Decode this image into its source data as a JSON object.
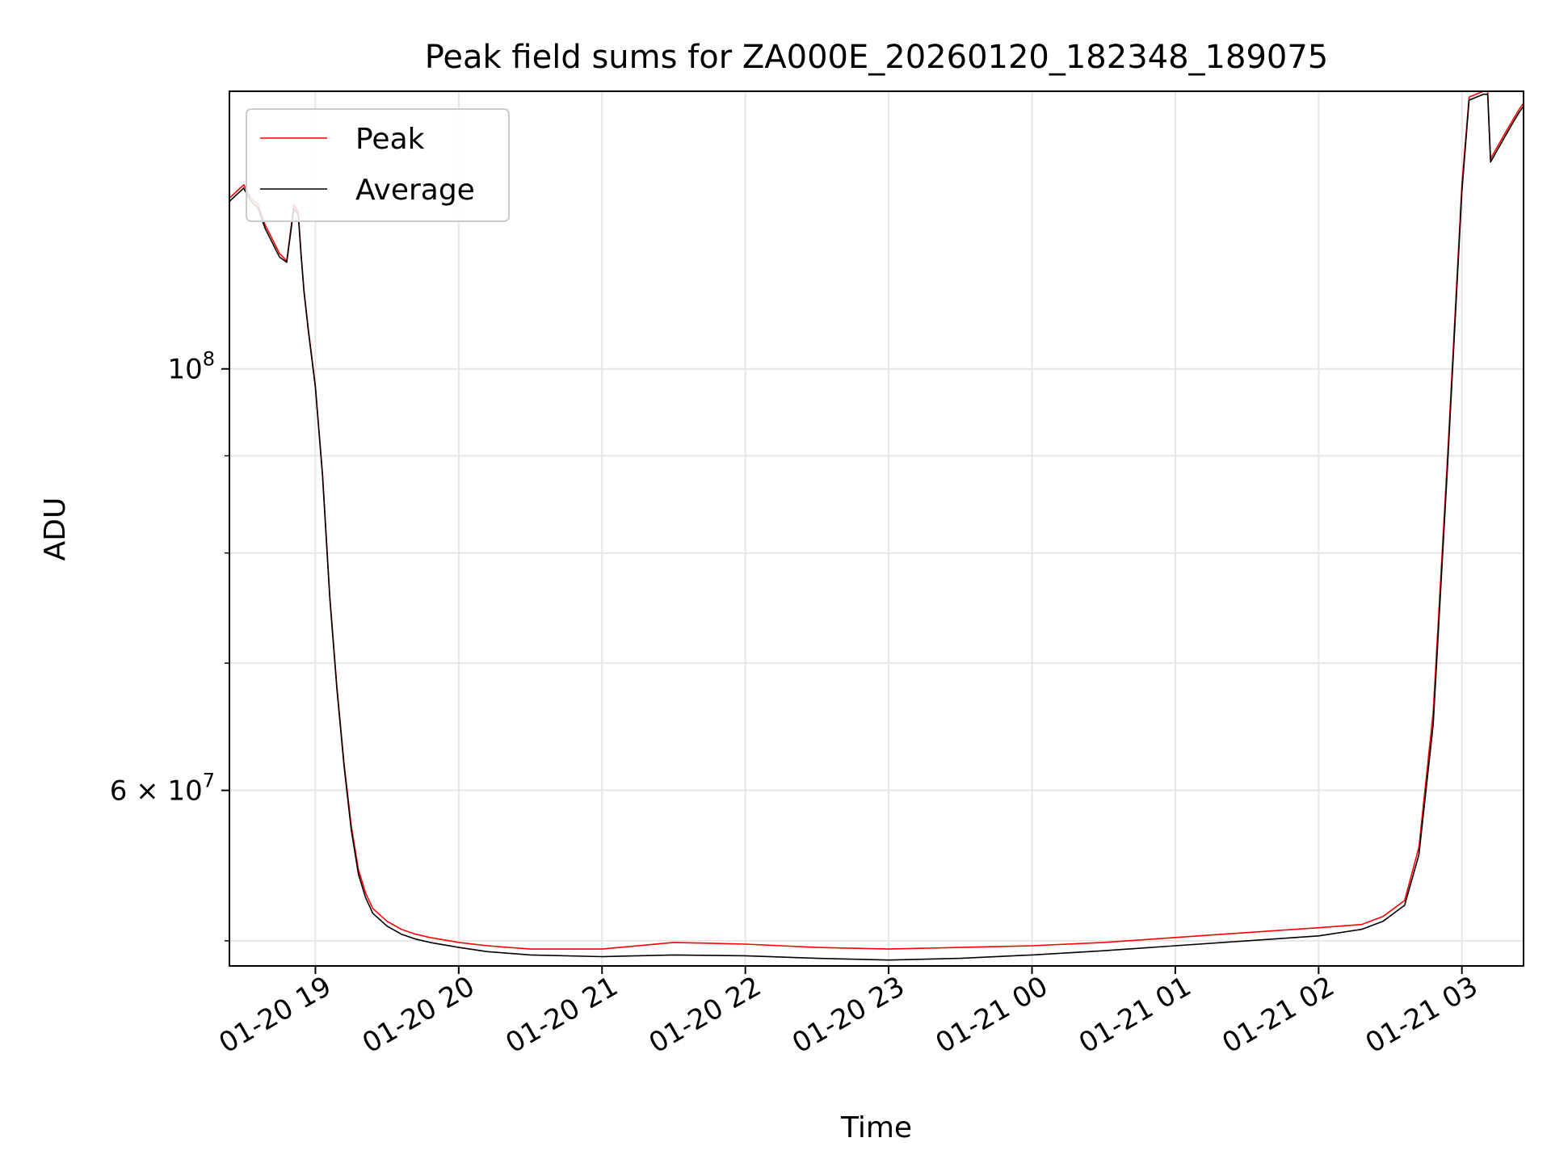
{
  "chart_data": {
    "type": "line",
    "title": "Peak field sums for ZA000E_20260120_182348_189075",
    "xlabel": "Time",
    "ylabel": "ADU",
    "yscale": "log",
    "xlim": [
      -0.6,
      8.43
    ],
    "ylim": [
      48500000,
      140000000
    ],
    "grid": true,
    "legend_position": "top-left",
    "x_ticks": [
      {
        "value": 0,
        "label": "01-20 19"
      },
      {
        "value": 1,
        "label": "01-20 20"
      },
      {
        "value": 2,
        "label": "01-20 21"
      },
      {
        "value": 3,
        "label": "01-20 22"
      },
      {
        "value": 4,
        "label": "01-20 23"
      },
      {
        "value": 5,
        "label": "01-21 00"
      },
      {
        "value": 6,
        "label": "01-21 01"
      },
      {
        "value": 7,
        "label": "01-21 02"
      },
      {
        "value": 8,
        "label": "01-21 03"
      }
    ],
    "y_major_ticks": [
      {
        "value": 100000000,
        "mant": "10",
        "exp": "8"
      },
      {
        "value": 60000000,
        "mant": "6 × 10",
        "exp": "7"
      }
    ],
    "y_minor_ticks": [
      50000000,
      70000000,
      80000000,
      90000000
    ],
    "series": [
      {
        "name": "Peak",
        "color": "#ff0000",
        "x": [
          -0.6,
          -0.55,
          -0.5,
          -0.45,
          -0.4,
          -0.35,
          -0.3,
          -0.25,
          -0.2,
          -0.15,
          -0.12,
          -0.1,
          -0.08,
          -0.05,
          0,
          0.05,
          0.1,
          0.15,
          0.2,
          0.25,
          0.3,
          0.35,
          0.4,
          0.5,
          0.6,
          0.7,
          0.8,
          1.0,
          1.2,
          1.5,
          2.0,
          2.5,
          3.0,
          3.5,
          4.0,
          4.5,
          5.0,
          5.5,
          6.0,
          6.5,
          7.0,
          7.3,
          7.45,
          7.6,
          7.7,
          7.8,
          7.9,
          8.0,
          8.05,
          8.15,
          8.18,
          8.2,
          8.25,
          8.3,
          8.35,
          8.4,
          8.43
        ],
        "values": [
          123000000,
          124000000,
          125000000,
          123000000,
          122000000,
          119000000,
          117000000,
          115000000,
          114000000,
          122000000,
          121000000,
          115000000,
          110000000,
          105000000,
          98000000,
          88000000,
          76000000,
          68000000,
          62000000,
          57500000,
          54500000,
          53000000,
          52000000,
          51200000,
          50700000,
          50400000,
          50200000,
          49900000,
          49700000,
          49500000,
          49500000,
          49900000,
          49800000,
          49600000,
          49500000,
          49600000,
          49700000,
          49900000,
          50200000,
          50500000,
          50800000,
          51000000,
          51500000,
          52500000,
          56000000,
          66000000,
          90000000,
          125000000,
          139000000,
          140000000,
          140000000,
          129000000,
          131000000,
          133000000,
          135000000,
          137000000,
          138000000
        ]
      },
      {
        "name": "Average",
        "color": "#000000",
        "x": [
          -0.6,
          -0.55,
          -0.5,
          -0.45,
          -0.4,
          -0.35,
          -0.3,
          -0.25,
          -0.2,
          -0.15,
          -0.12,
          -0.1,
          -0.08,
          -0.05,
          0,
          0.05,
          0.1,
          0.15,
          0.2,
          0.25,
          0.3,
          0.35,
          0.4,
          0.5,
          0.6,
          0.7,
          0.8,
          1.0,
          1.2,
          1.5,
          2.0,
          2.5,
          3.0,
          3.5,
          4.0,
          4.5,
          5.0,
          5.5,
          6.0,
          6.5,
          7.0,
          7.3,
          7.45,
          7.6,
          7.7,
          7.8,
          7.9,
          8.0,
          8.05,
          8.15,
          8.18,
          8.2,
          8.25,
          8.3,
          8.35,
          8.4,
          8.43
        ],
        "values": [
          122500000,
          123500000,
          124500000,
          122500000,
          121500000,
          118500000,
          116500000,
          114500000,
          113800000,
          121500000,
          120500000,
          114800000,
          109800000,
          104800000,
          97800000,
          87800000,
          75800000,
          67800000,
          61800000,
          57200000,
          54200000,
          52700000,
          51700000,
          50900000,
          50400000,
          50100000,
          49900000,
          49600000,
          49350000,
          49150000,
          49050000,
          49150000,
          49100000,
          48950000,
          48850000,
          48950000,
          49150000,
          49400000,
          49700000,
          50000000,
          50300000,
          50700000,
          51200000,
          52200000,
          55500000,
          65000000,
          89000000,
          124000000,
          138500000,
          139500000,
          139500000,
          128500000,
          130500000,
          132500000,
          134500000,
          136500000,
          137500000
        ]
      }
    ]
  }
}
